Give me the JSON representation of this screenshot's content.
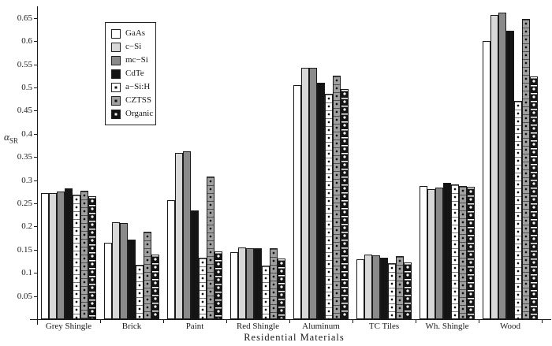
{
  "chart_data": {
    "type": "bar",
    "title": "",
    "xlabel": "Residential  Materials",
    "ylabel_symbol": "α",
    "ylabel_sub": "SR",
    "ylim": [
      0,
      0.68
    ],
    "grid": false,
    "legend_position": "upper-left-inside",
    "ytick_labels": [
      "0.05",
      "0.1",
      "0.15",
      "0.2",
      "0.25",
      "0.3",
      "0.35",
      "0.4",
      "0.45",
      "0.5",
      "0.55",
      "0.6",
      "0.65"
    ],
    "ytick_values": [
      0.05,
      0.1,
      0.15,
      0.2,
      0.25,
      0.3,
      0.35,
      0.4,
      0.45,
      0.5,
      0.55,
      0.6,
      0.65
    ],
    "categories": [
      "Grey Shingle",
      "Brick",
      "Paint",
      "Red Shingle",
      "Aluminum",
      "TC Tiles",
      "Wh. Shingle",
      "Wood"
    ],
    "series": [
      {
        "name": "GaAs",
        "fill": "#ffffff",
        "pattern": "plain",
        "dot": "",
        "values": [
          0.272,
          0.165,
          0.256,
          0.144,
          0.505,
          0.13,
          0.288,
          0.601
        ]
      },
      {
        "name": "c−Si",
        "fill": "#d8d8d8",
        "pattern": "plain",
        "dot": "",
        "values": [
          0.272,
          0.21,
          0.359,
          0.155,
          0.542,
          0.14,
          0.281,
          0.656
        ]
      },
      {
        "name": "mc−Si",
        "fill": "#8a8a8a",
        "pattern": "plain",
        "dot": "",
        "values": [
          0.275,
          0.208,
          0.362,
          0.153,
          0.542,
          0.137,
          0.284,
          0.662
        ]
      },
      {
        "name": "CdTe",
        "fill": "#141414",
        "pattern": "plain",
        "dot": "",
        "values": [
          0.282,
          0.172,
          0.234,
          0.153,
          0.511,
          0.133,
          0.295,
          0.623
        ]
      },
      {
        "name": "a−Si:H",
        "fill": "#ffffff",
        "pattern": "dots-white",
        "dot": "#111111",
        "values": [
          0.269,
          0.117,
          0.133,
          0.116,
          0.487,
          0.12,
          0.29,
          0.471
        ]
      },
      {
        "name": "CZTSS",
        "fill": "#a0a0a0",
        "pattern": "dots-gray",
        "dot": "#111111",
        "values": [
          0.278,
          0.188,
          0.308,
          0.153,
          0.526,
          0.136,
          0.287,
          0.648
        ]
      },
      {
        "name": "Organic",
        "fill": "#141414",
        "pattern": "dots-black",
        "dot": "#ffffff",
        "values": [
          0.265,
          0.14,
          0.146,
          0.131,
          0.497,
          0.122,
          0.285,
          0.523
        ]
      }
    ]
  },
  "layout_note_colors": {
    "axis": "#1a1a1a",
    "background": "#ffffff"
  }
}
